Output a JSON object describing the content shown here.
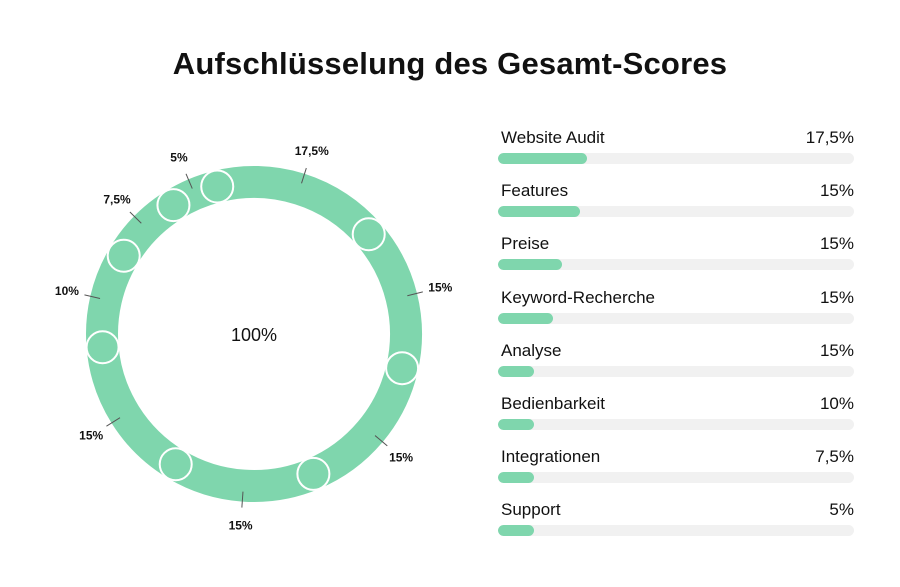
{
  "title": "Aufschlüsselung des Gesamt-Scores",
  "colors": {
    "accent": "#7fd6ad",
    "track": "#f1f1f1",
    "separator": "#ffffff",
    "leader": "#555555"
  },
  "chart_data": [
    {
      "type": "donut",
      "center_label": "100%",
      "slices": [
        {
          "value": 17.5,
          "label": "17,5%"
        },
        {
          "value": 15,
          "label": "15%"
        },
        {
          "value": 15,
          "label": "15%"
        },
        {
          "value": 15,
          "label": "15%"
        },
        {
          "value": 15,
          "label": "15%"
        },
        {
          "value": 10,
          "label": "10%"
        },
        {
          "value": 7.5,
          "label": "7,5%"
        },
        {
          "value": 5,
          "label": "5%"
        }
      ]
    },
    {
      "type": "bar",
      "orientation": "horizontal",
      "categories": [
        "Website Audit",
        "Features",
        "Preise",
        "Keyword-Recherche",
        "Analyse",
        "Bedienbarkeit",
        "Integrationen",
        "Support"
      ],
      "value_labels": [
        "17,5%",
        "15%",
        "15%",
        "15%",
        "15%",
        "10%",
        "7,5%",
        "5%"
      ],
      "fill_fraction": [
        0.25,
        0.23,
        0.18,
        0.155,
        0.1,
        0.1,
        0.1,
        0.1
      ]
    }
  ]
}
